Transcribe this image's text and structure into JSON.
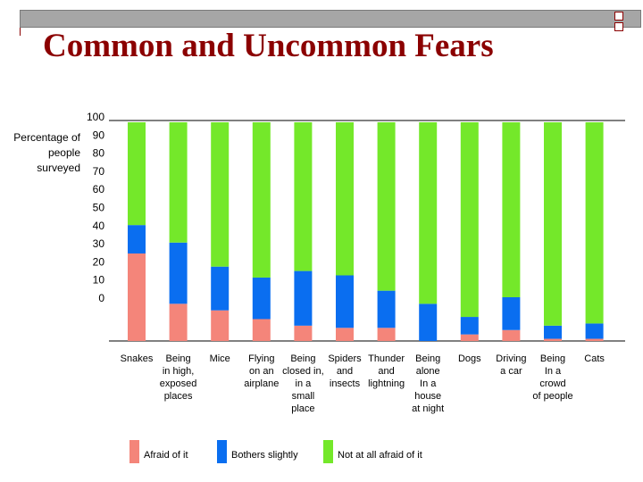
{
  "title": "Common and Uncommon Fears",
  "colors": {
    "afraid": "#f4857a",
    "bothers": "#0a6ef0",
    "not_afraid": "#74e82a",
    "title": "#8b0000"
  },
  "chart_data": {
    "type": "bar",
    "stacked": true,
    "title": "Common and Uncommon Fears",
    "ylabel": "Percentage of people surveyed",
    "xlabel": "",
    "ylim": [
      0,
      100
    ],
    "y_ticks": [
      "100",
      "90",
      "80",
      "70",
      "60",
      "50",
      "40",
      "30",
      "20",
      "10",
      "0"
    ],
    "categories": [
      "Snakes",
      "Being in high, exposed places",
      "Mice",
      "Flying on an airplane",
      "Being closed in, in a small place",
      "Spiders and insects",
      "Thunder and lightning",
      "Being alone In a house at night",
      "Dogs",
      "Driving a car",
      "Being In a crowd",
      "Cats"
    ],
    "category_lines": [
      [
        "Snakes"
      ],
      [
        "Being",
        "in high,",
        "exposed",
        "places"
      ],
      [
        "Mice"
      ],
      [
        "Flying",
        "on an",
        "airplane"
      ],
      [
        "Being",
        "closed in,",
        "in a",
        "small",
        "place"
      ],
      [
        "Spiders",
        "and",
        "insects"
      ],
      [
        "Thunder",
        "and",
        "lightning"
      ],
      [
        "Being",
        "alone",
        "In a",
        "house",
        "at night"
      ],
      [
        "Dogs"
      ],
      [
        "Driving",
        "a car"
      ],
      [
        "Being",
        "In a",
        "crowd",
        "of people"
      ],
      [
        "Cats"
      ]
    ],
    "series": [
      {
        "name": "Afraid of it",
        "values": [
          40,
          17,
          14,
          10,
          7,
          6,
          6,
          0,
          3,
          5,
          1,
          1
        ]
      },
      {
        "name": "Bothers slightly",
        "values": [
          13,
          28,
          20,
          19,
          25,
          24,
          17,
          17,
          8,
          15,
          6,
          7
        ]
      },
      {
        "name": "Not at all afraid of it",
        "values": [
          47,
          55,
          66,
          71,
          68,
          70,
          77,
          83,
          89,
          80,
          93,
          92
        ]
      }
    ],
    "legend": [
      "Afraid of it",
      "Bothers slightly",
      "Not at all afraid of it"
    ],
    "legend_position": "bottom",
    "grid": false
  }
}
